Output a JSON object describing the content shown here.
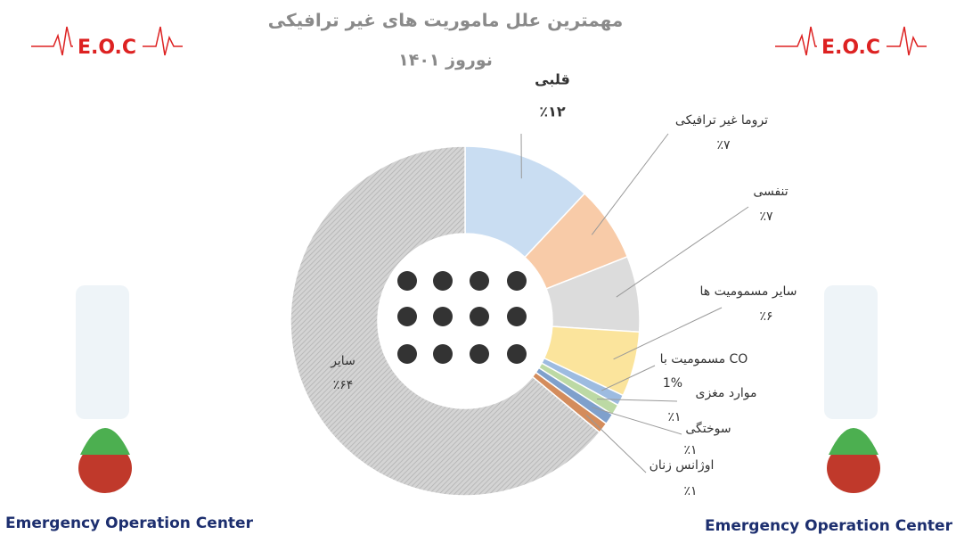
{
  "chart_data": {
    "type": "pie",
    "donut": true,
    "title": "مهمترین علل ماموریت های غیر ترافیکی",
    "subtitle": "نوروز ۱۴۰۱",
    "categories": [
      "قلبی",
      "تروما غیر ترافیکی",
      "تنفسی",
      "سایر مسمومیت ها",
      "مسمومیت با CO",
      "موارد مغزی",
      "سوختگی",
      "اوژانس زنان",
      "سایر"
    ],
    "values": [
      12,
      7,
      7,
      6,
      1,
      1,
      1,
      1,
      64
    ],
    "value_labels": [
      "٪۱۲",
      "٪۷",
      "٪۷",
      "٪۶",
      "1%",
      "٪۱",
      "٪۱",
      "٪۱",
      "٪۶۴"
    ],
    "colors": [
      "#c9ddf2",
      "#f8cba8",
      "#dcdcdc",
      "#fbe49c",
      "#9dbbe0",
      "#bcd9a4",
      "#7fa0cc",
      "#d48c5c",
      "#cfcfcf"
    ]
  },
  "branding": {
    "logo": "E.O.C",
    "logo_right": "E.O.C",
    "org": "Emergency Operation Center",
    "org_right": "Emergency Operation Center"
  }
}
